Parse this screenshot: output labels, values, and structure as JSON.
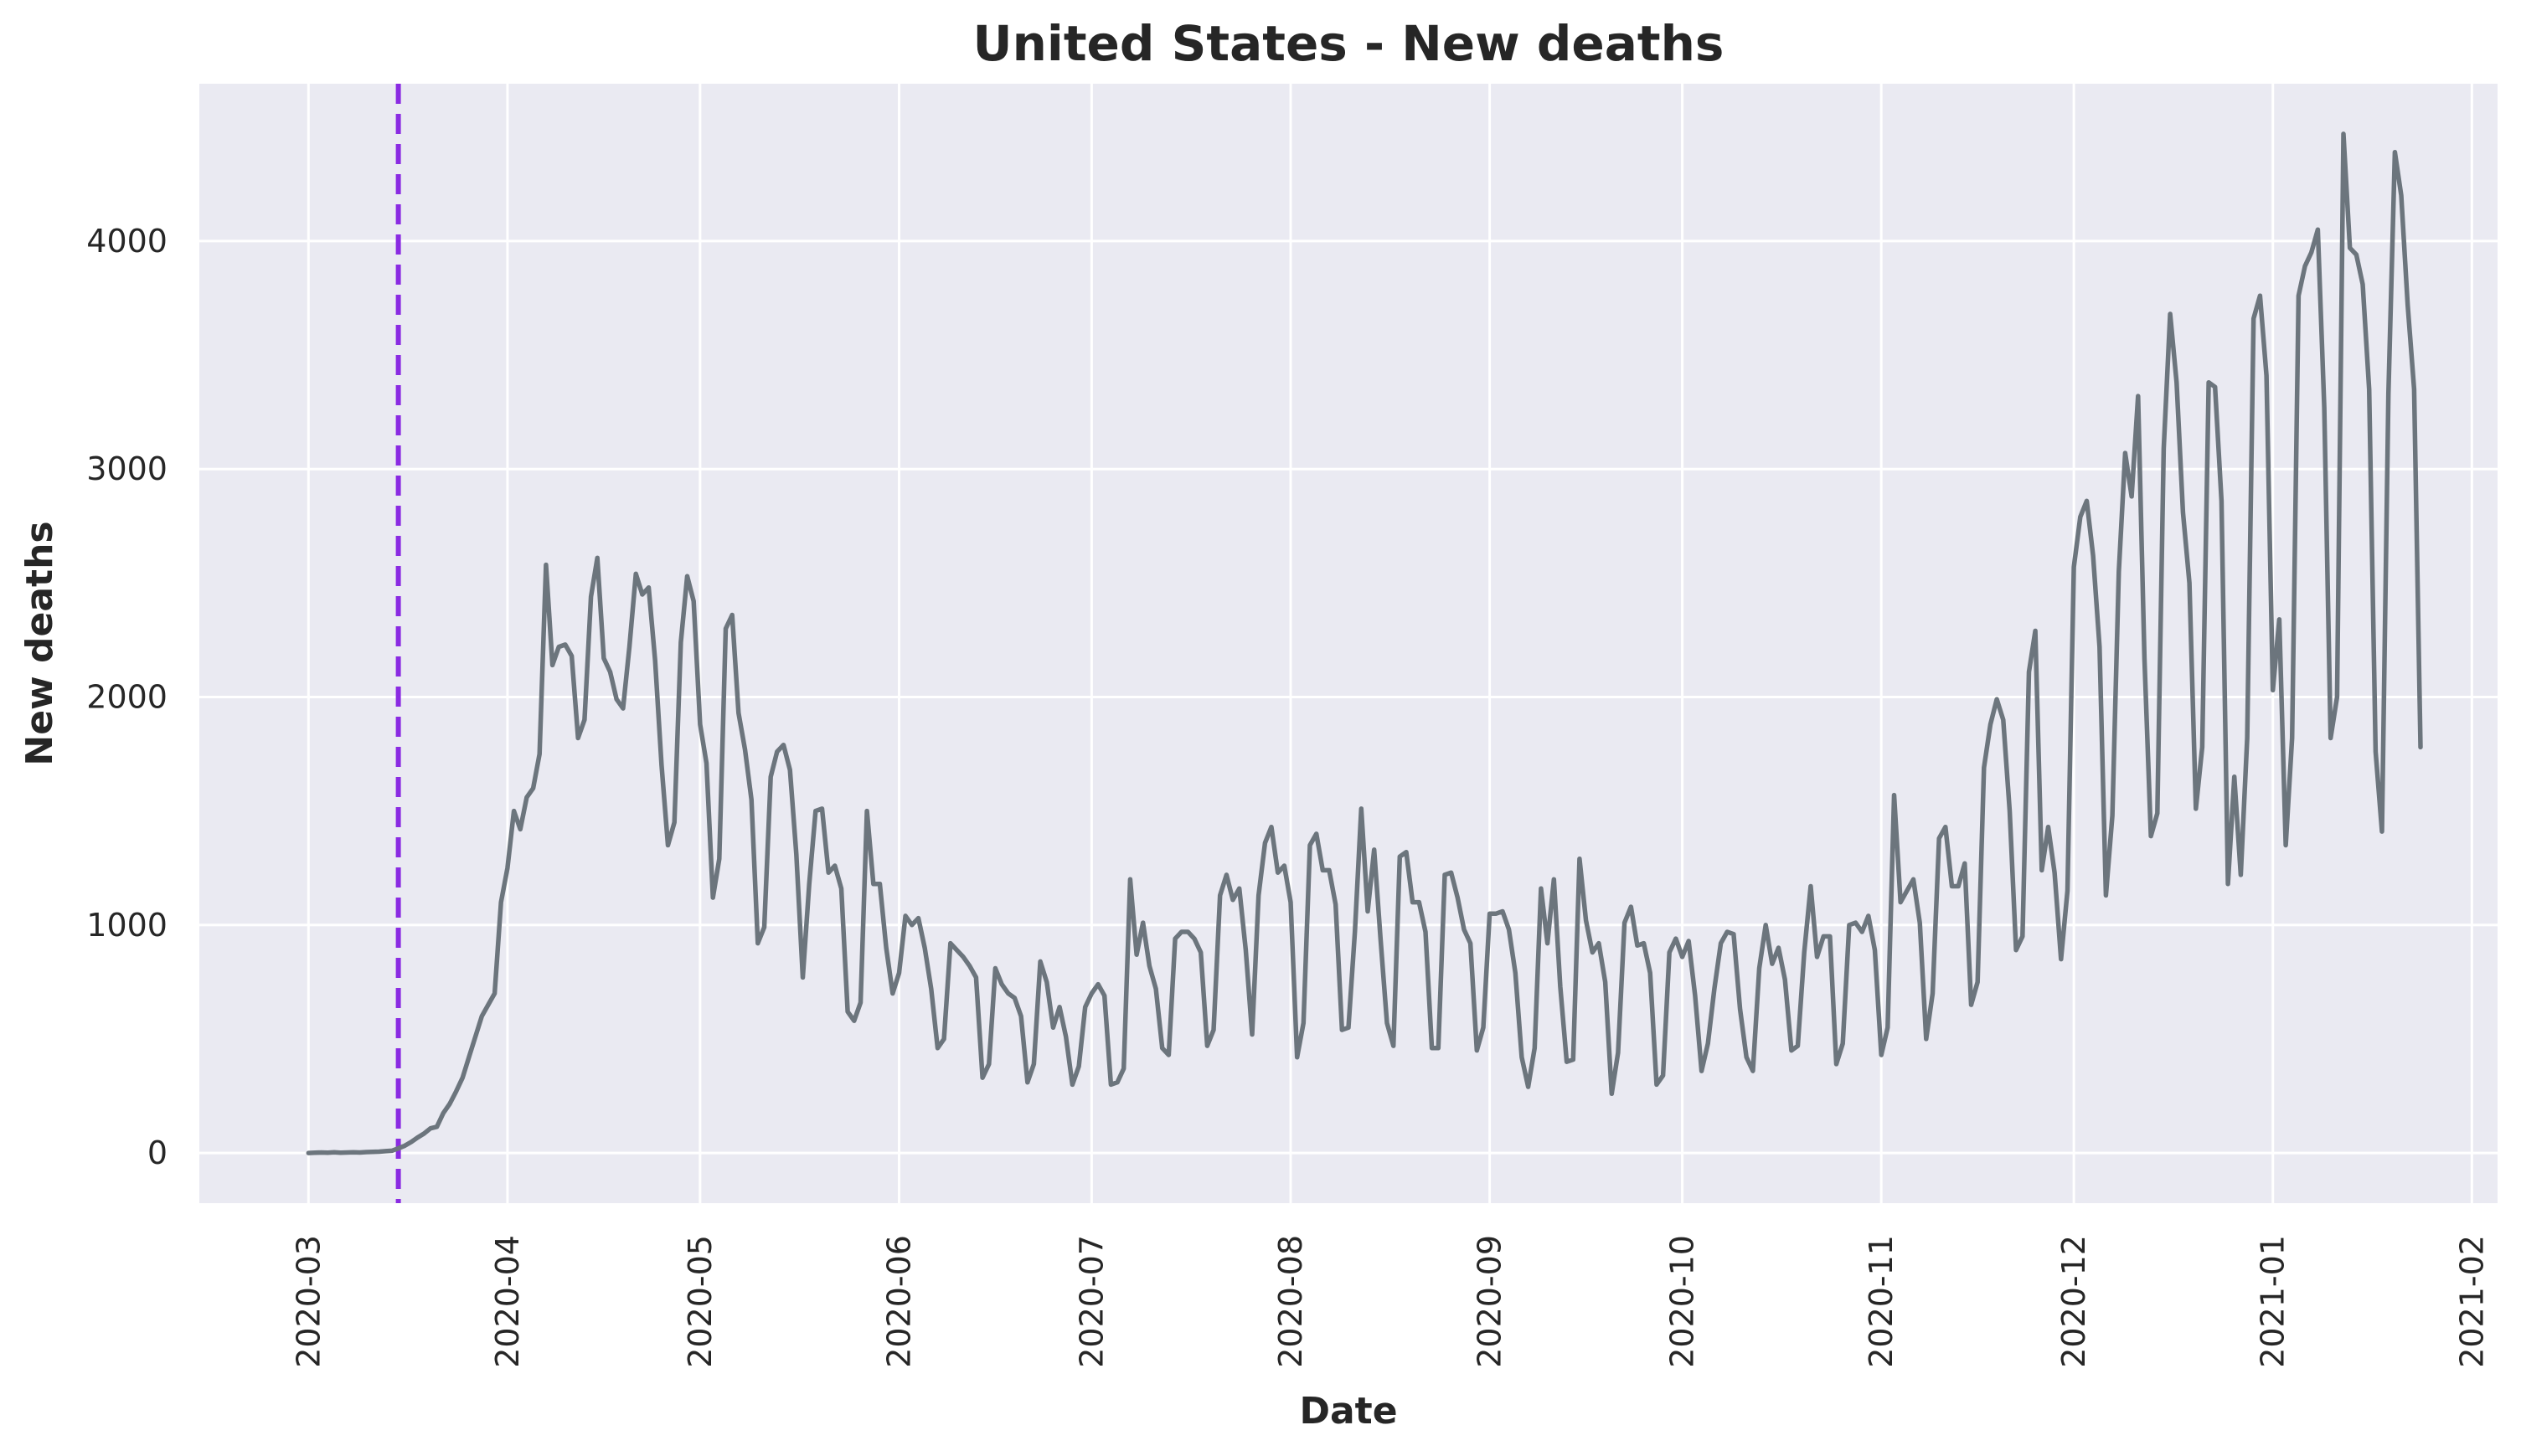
{
  "chart_data": {
    "type": "line",
    "title": "United States - New deaths",
    "xlabel": "Date",
    "ylabel": "New deaths",
    "x_start": "2020-03-01",
    "x_end": "2021-01-24",
    "xlim": [
      "2020-02-13",
      "2021-02-05"
    ],
    "ylim": [
      -220,
      4690
    ],
    "x_ticks": [
      "2020-03-01",
      "2020-04-01",
      "2020-05-01",
      "2020-06-01",
      "2020-07-01",
      "2020-08-01",
      "2020-09-01",
      "2020-10-01",
      "2020-11-01",
      "2020-12-01",
      "2021-01-01",
      "2021-02-01"
    ],
    "x_tick_labels": [
      "2020-03",
      "2020-04",
      "2020-05",
      "2020-06",
      "2020-07",
      "2020-08",
      "2020-09",
      "2020-10",
      "2020-11",
      "2020-12",
      "2021-01",
      "2021-02"
    ],
    "y_ticks": [
      0,
      1000,
      2000,
      3000,
      4000
    ],
    "y_tick_labels": [
      "0",
      "1000",
      "2000",
      "3000",
      "4000"
    ],
    "vline": {
      "x": "2020-03-15",
      "style": "dashed",
      "color": "#8a2be2"
    },
    "grid": true,
    "colors": {
      "background": "#eaeaf2",
      "grid": "#ffffff",
      "line": "#6c757d",
      "vline": "#8a2be2",
      "text": "#262626"
    },
    "series": [
      {
        "values": [
          0,
          1,
          2,
          1,
          3,
          1,
          2,
          3,
          2,
          4,
          5,
          6,
          8,
          10,
          20,
          32,
          48,
          68,
          85,
          108,
          115,
          175,
          215,
          270,
          330,
          420,
          510,
          600,
          650,
          700,
          1100,
          1250,
          1500,
          1420,
          1560,
          1600,
          1750,
          2580,
          2140,
          2220,
          2230,
          2180,
          1820,
          1900,
          2440,
          2610,
          2170,
          2110,
          1990,
          1950,
          2220,
          2540,
          2450,
          2480,
          2160,
          1700,
          1350,
          1450,
          2240,
          2530,
          2420,
          1880,
          1710,
          1120,
          1290,
          2300,
          2360,
          1930,
          1770,
          1550,
          920,
          990,
          1650,
          1760,
          1790,
          1680,
          1310,
          770,
          1180,
          1500,
          1510,
          1230,
          1260,
          1160,
          620,
          580,
          660,
          1500,
          1180,
          1180,
          900,
          700,
          790,
          1040,
          1000,
          1030,
          900,
          720,
          460,
          500,
          920,
          890,
          860,
          820,
          770,
          330,
          390,
          810,
          740,
          700,
          680,
          600,
          310,
          390,
          840,
          750,
          550,
          640,
          510,
          300,
          380,
          640,
          700,
          740,
          690,
          300,
          310,
          370,
          1200,
          870,
          1010,
          820,
          720,
          460,
          430,
          940,
          970,
          970,
          940,
          880,
          470,
          540,
          1130,
          1220,
          1110,
          1160,
          890,
          520,
          1130,
          1360,
          1430,
          1230,
          1260,
          1100,
          420,
          570,
          1350,
          1400,
          1240,
          1240,
          1090,
          540,
          550,
          970,
          1510,
          1060,
          1330,
          940,
          570,
          470,
          1300,
          1320,
          1100,
          1100,
          970,
          460,
          460,
          1220,
          1230,
          1120,
          980,
          920,
          450,
          550,
          1050,
          1050,
          1060,
          980,
          790,
          420,
          290,
          460,
          1160,
          920,
          1200,
          730,
          400,
          410,
          1290,
          1020,
          880,
          920,
          750,
          260,
          440,
          1010,
          1080,
          910,
          920,
          790,
          300,
          340,
          880,
          940,
          860,
          930,
          690,
          360,
          480,
          720,
          920,
          970,
          960,
          630,
          420,
          360,
          810,
          1000,
          830,
          900,
          760,
          450,
          470,
          880,
          1170,
          860,
          950,
          950,
          390,
          480,
          1000,
          1010,
          970,
          1040,
          890,
          430,
          550,
          1570,
          1100,
          1150,
          1200,
          1010,
          500,
          700,
          1380,
          1430,
          1170,
          1170,
          1270,
          650,
          750,
          1690,
          1880,
          1990,
          1900,
          1500,
          890,
          950,
          2110,
          2290,
          1240,
          1430,
          1230,
          850,
          1150,
          2570,
          2790,
          2860,
          2620,
          2220,
          1130,
          1480,
          2550,
          3070,
          2880,
          3320,
          2170,
          1390,
          1490,
          3090,
          3680,
          3380,
          2810,
          2500,
          1510,
          1780,
          3380,
          3360,
          2860,
          1180,
          1650,
          1220,
          1820,
          3660,
          3760,
          3410,
          2030,
          2340,
          1350,
          1820,
          3760,
          3890,
          3950,
          4050,
          3270,
          1820,
          2000,
          4470,
          3970,
          3940,
          3810,
          3350,
          1760,
          1410,
          3330,
          4390,
          4200,
          3720,
          3350,
          1780
        ]
      }
    ]
  }
}
